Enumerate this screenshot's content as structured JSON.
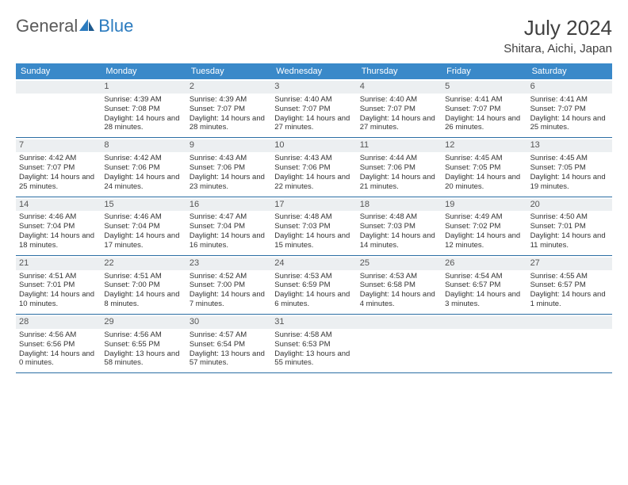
{
  "logo": {
    "word1": "General",
    "word2": "Blue"
  },
  "title": "July 2024",
  "location": "Shitara, Aichi, Japan",
  "colors": {
    "header_bg": "#3a89c9",
    "header_text": "#ffffff",
    "daynum_bg": "#eceff1",
    "row_border": "#2b6ea3",
    "logo_gray": "#5a5a5a",
    "logo_blue": "#2b7bbf"
  },
  "weekdays": [
    "Sunday",
    "Monday",
    "Tuesday",
    "Wednesday",
    "Thursday",
    "Friday",
    "Saturday"
  ],
  "weeks": [
    [
      {
        "n": "",
        "sr": "",
        "ss": "",
        "dl": ""
      },
      {
        "n": "1",
        "sr": "4:39 AM",
        "ss": "7:08 PM",
        "dl": "14 hours and 28 minutes."
      },
      {
        "n": "2",
        "sr": "4:39 AM",
        "ss": "7:07 PM",
        "dl": "14 hours and 28 minutes."
      },
      {
        "n": "3",
        "sr": "4:40 AM",
        "ss": "7:07 PM",
        "dl": "14 hours and 27 minutes."
      },
      {
        "n": "4",
        "sr": "4:40 AM",
        "ss": "7:07 PM",
        "dl": "14 hours and 27 minutes."
      },
      {
        "n": "5",
        "sr": "4:41 AM",
        "ss": "7:07 PM",
        "dl": "14 hours and 26 minutes."
      },
      {
        "n": "6",
        "sr": "4:41 AM",
        "ss": "7:07 PM",
        "dl": "14 hours and 25 minutes."
      }
    ],
    [
      {
        "n": "7",
        "sr": "4:42 AM",
        "ss": "7:07 PM",
        "dl": "14 hours and 25 minutes."
      },
      {
        "n": "8",
        "sr": "4:42 AM",
        "ss": "7:06 PM",
        "dl": "14 hours and 24 minutes."
      },
      {
        "n": "9",
        "sr": "4:43 AM",
        "ss": "7:06 PM",
        "dl": "14 hours and 23 minutes."
      },
      {
        "n": "10",
        "sr": "4:43 AM",
        "ss": "7:06 PM",
        "dl": "14 hours and 22 minutes."
      },
      {
        "n": "11",
        "sr": "4:44 AM",
        "ss": "7:06 PM",
        "dl": "14 hours and 21 minutes."
      },
      {
        "n": "12",
        "sr": "4:45 AM",
        "ss": "7:05 PM",
        "dl": "14 hours and 20 minutes."
      },
      {
        "n": "13",
        "sr": "4:45 AM",
        "ss": "7:05 PM",
        "dl": "14 hours and 19 minutes."
      }
    ],
    [
      {
        "n": "14",
        "sr": "4:46 AM",
        "ss": "7:04 PM",
        "dl": "14 hours and 18 minutes."
      },
      {
        "n": "15",
        "sr": "4:46 AM",
        "ss": "7:04 PM",
        "dl": "14 hours and 17 minutes."
      },
      {
        "n": "16",
        "sr": "4:47 AM",
        "ss": "7:04 PM",
        "dl": "14 hours and 16 minutes."
      },
      {
        "n": "17",
        "sr": "4:48 AM",
        "ss": "7:03 PM",
        "dl": "14 hours and 15 minutes."
      },
      {
        "n": "18",
        "sr": "4:48 AM",
        "ss": "7:03 PM",
        "dl": "14 hours and 14 minutes."
      },
      {
        "n": "19",
        "sr": "4:49 AM",
        "ss": "7:02 PM",
        "dl": "14 hours and 12 minutes."
      },
      {
        "n": "20",
        "sr": "4:50 AM",
        "ss": "7:01 PM",
        "dl": "14 hours and 11 minutes."
      }
    ],
    [
      {
        "n": "21",
        "sr": "4:51 AM",
        "ss": "7:01 PM",
        "dl": "14 hours and 10 minutes."
      },
      {
        "n": "22",
        "sr": "4:51 AM",
        "ss": "7:00 PM",
        "dl": "14 hours and 8 minutes."
      },
      {
        "n": "23",
        "sr": "4:52 AM",
        "ss": "7:00 PM",
        "dl": "14 hours and 7 minutes."
      },
      {
        "n": "24",
        "sr": "4:53 AM",
        "ss": "6:59 PM",
        "dl": "14 hours and 6 minutes."
      },
      {
        "n": "25",
        "sr": "4:53 AM",
        "ss": "6:58 PM",
        "dl": "14 hours and 4 minutes."
      },
      {
        "n": "26",
        "sr": "4:54 AM",
        "ss": "6:57 PM",
        "dl": "14 hours and 3 minutes."
      },
      {
        "n": "27",
        "sr": "4:55 AM",
        "ss": "6:57 PM",
        "dl": "14 hours and 1 minute."
      }
    ],
    [
      {
        "n": "28",
        "sr": "4:56 AM",
        "ss": "6:56 PM",
        "dl": "14 hours and 0 minutes."
      },
      {
        "n": "29",
        "sr": "4:56 AM",
        "ss": "6:55 PM",
        "dl": "13 hours and 58 minutes."
      },
      {
        "n": "30",
        "sr": "4:57 AM",
        "ss": "6:54 PM",
        "dl": "13 hours and 57 minutes."
      },
      {
        "n": "31",
        "sr": "4:58 AM",
        "ss": "6:53 PM",
        "dl": "13 hours and 55 minutes."
      },
      {
        "n": "",
        "sr": "",
        "ss": "",
        "dl": ""
      },
      {
        "n": "",
        "sr": "",
        "ss": "",
        "dl": ""
      },
      {
        "n": "",
        "sr": "",
        "ss": "",
        "dl": ""
      }
    ]
  ],
  "labels": {
    "sunrise": "Sunrise: ",
    "sunset": "Sunset: ",
    "daylight": "Daylight: "
  }
}
